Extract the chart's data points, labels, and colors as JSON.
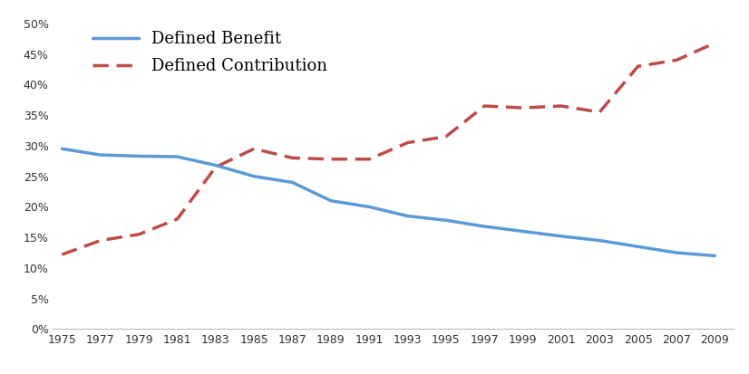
{
  "years": [
    1975,
    1977,
    1979,
    1981,
    1983,
    1985,
    1987,
    1989,
    1991,
    1993,
    1995,
    1997,
    1999,
    2001,
    2003,
    2005,
    2007,
    2009
  ],
  "defined_benefit": [
    0.295,
    0.285,
    0.283,
    0.282,
    0.268,
    0.25,
    0.24,
    0.21,
    0.2,
    0.185,
    0.178,
    0.168,
    0.16,
    0.152,
    0.145,
    0.135,
    0.125,
    0.12
  ],
  "defined_contribution": [
    0.122,
    0.145,
    0.155,
    0.18,
    0.265,
    0.295,
    0.28,
    0.278,
    0.278,
    0.305,
    0.315,
    0.365,
    0.362,
    0.365,
    0.355,
    0.43,
    0.44,
    0.468
  ],
  "db_color": "#5b9bd5",
  "dc_color": "#be4b48",
  "db_label": "Defined Benefit",
  "dc_label": "Defined Contribution",
  "ylim": [
    0.0,
    0.52
  ],
  "yticks": [
    0.0,
    0.05,
    0.1,
    0.15,
    0.2,
    0.25,
    0.3,
    0.35,
    0.4,
    0.45,
    0.5
  ],
  "bg_color": "#ffffff",
  "linewidth": 2.5,
  "tick_fontsize": 9,
  "legend_fontsize": 13
}
